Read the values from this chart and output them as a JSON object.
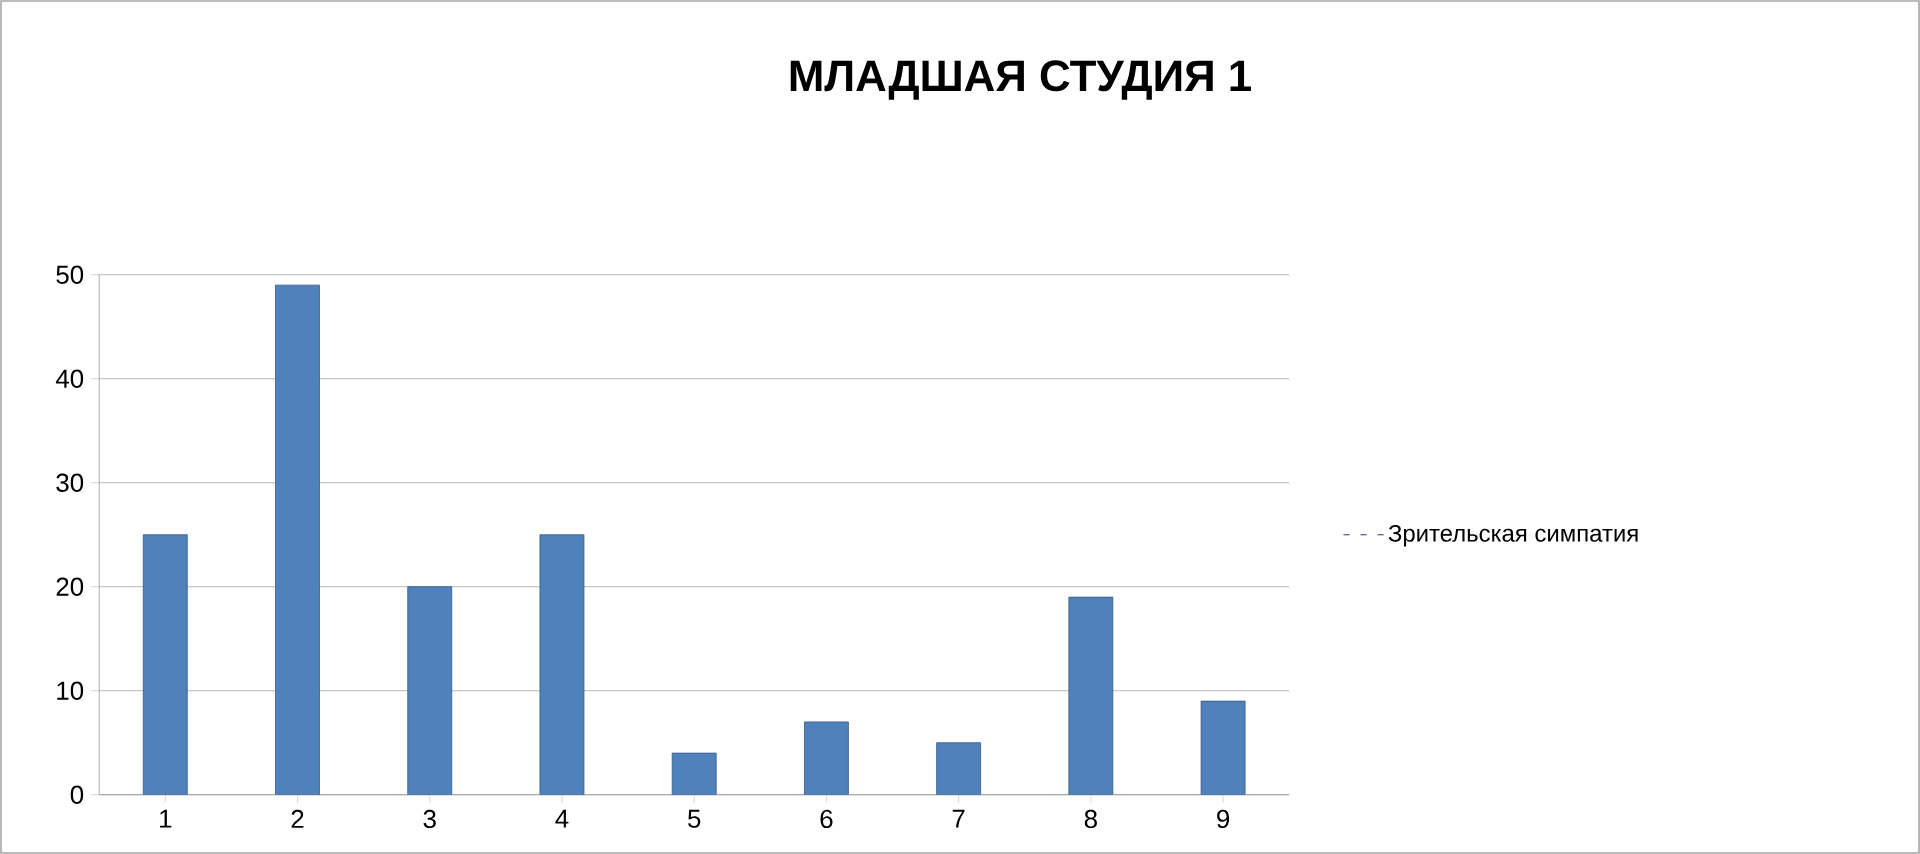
{
  "chart_data": {
    "type": "bar",
    "title": "МЛАДШАЯ СТУДИЯ 1",
    "categories": [
      "1",
      "2",
      "3",
      "4",
      "5",
      "6",
      "7",
      "8",
      "9"
    ],
    "series": [
      {
        "name": "Зрительская симпатия",
        "color": "#4f81bd",
        "values": [
          25,
          49,
          20,
          25,
          4,
          7,
          5,
          19,
          9
        ]
      }
    ],
    "ylim": [
      0,
      50
    ],
    "yticks": [
      0,
      10,
      20,
      30,
      40,
      50
    ],
    "grid": "y",
    "legend": "right"
  }
}
